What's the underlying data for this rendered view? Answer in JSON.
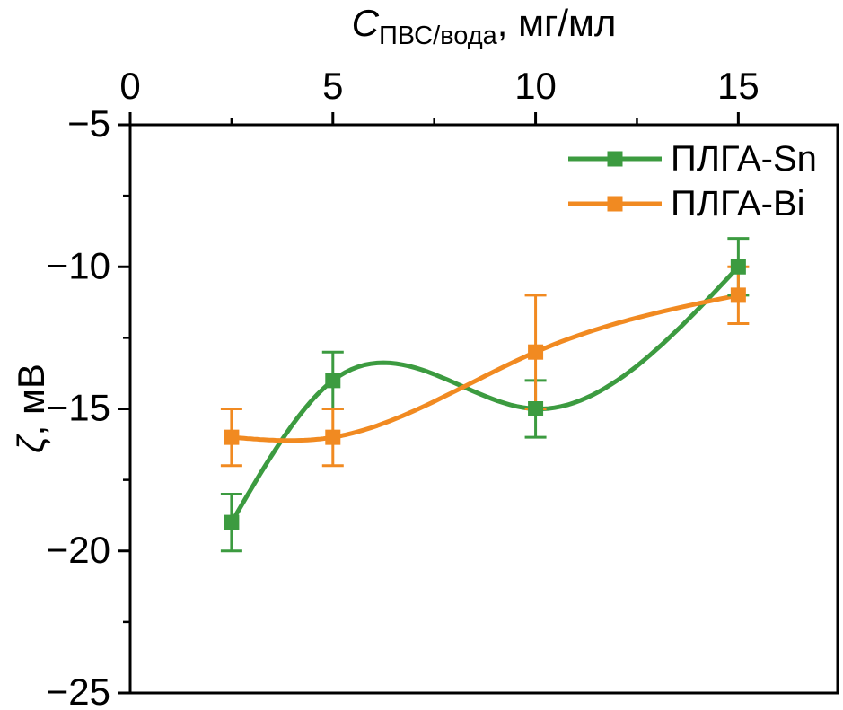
{
  "chart_data": {
    "type": "line",
    "title": {
      "var": "C",
      "sub": "ПВС/вода",
      "rest": ", мг/мл",
      "text": "C_ПВС/вода, мг/мл"
    },
    "ylabel": {
      "var": "ζ",
      "rest": ", мВ",
      "text": "ζ, мВ"
    },
    "x": [
      2.5,
      5,
      10,
      15
    ],
    "series": [
      {
        "name": "ПЛГА-Sn",
        "color": "#3c9b40",
        "marker": "square",
        "values": [
          -19,
          -14,
          -15,
          -10
        ],
        "errors": [
          1,
          1,
          1,
          1
        ]
      },
      {
        "name": "ПЛГА-Bi",
        "color": "#f18a21",
        "marker": "square",
        "values": [
          -16,
          -16,
          -13,
          -11
        ],
        "errors": [
          1,
          1,
          2,
          1
        ]
      }
    ],
    "xlim": [
      0,
      17.45
    ],
    "ylim": [
      -25,
      -5
    ],
    "x_axis_position": "top",
    "x_major_ticks": [
      0,
      5,
      10,
      15
    ],
    "x_minor_ticks": [
      2.5,
      7.5,
      12.5
    ],
    "x_tick_labels": [
      "0",
      "5",
      "10",
      "15"
    ],
    "y_major_ticks": [
      -5,
      -10,
      -15,
      -20,
      -25
    ],
    "y_minor_ticks": [
      -7.5,
      -12.5,
      -17.5,
      -22.5
    ],
    "y_tick_labels": [
      "−5",
      "−10",
      "−15",
      "−20",
      "−25"
    ],
    "grid": false,
    "legend_position": "top-right",
    "curve_style": "natural-spline",
    "error_bars": true,
    "axis_color": "#000000",
    "background": "#ffffff"
  }
}
